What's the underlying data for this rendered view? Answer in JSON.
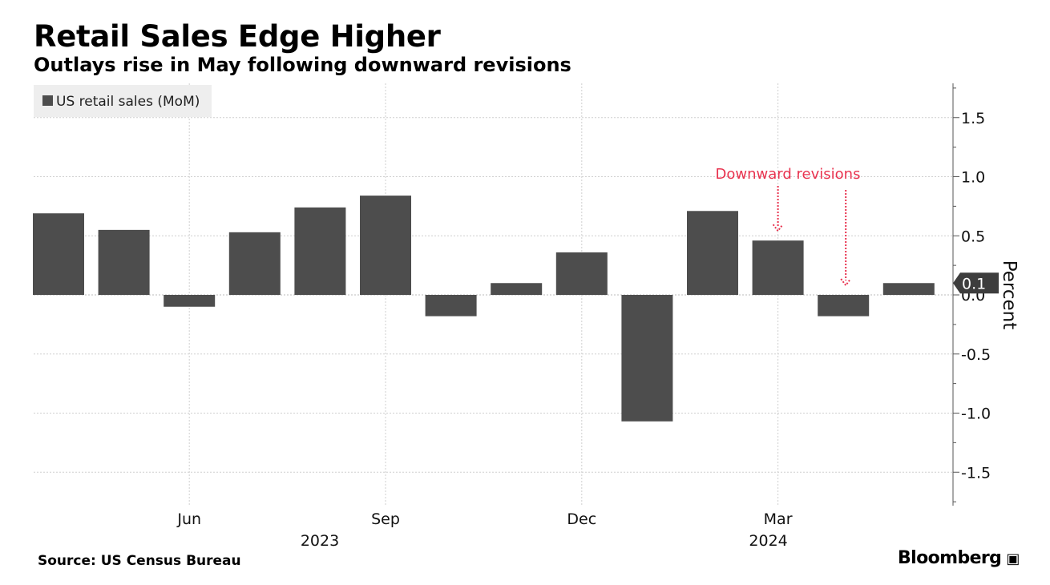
{
  "title": "Retail Sales Edge Higher",
  "subtitle": "Outlays rise in May following downward revisions",
  "source": "Source: US Census Bureau",
  "brand": "Bloomberg",
  "brand_icon": "bloomberg-terminal-icon",
  "chart_data": {
    "type": "bar",
    "legend_label": "US retail sales (MoM)",
    "legend_position": "top-left",
    "ylabel": "Percent",
    "ylim": [
      -1.8,
      1.8
    ],
    "yticks": [
      1.5,
      1.0,
      0.5,
      0.0,
      -0.5,
      -1.0,
      -1.5
    ],
    "ytick_labels": [
      "1.5",
      "1.0",
      "0.5",
      "0.0",
      "-0.5",
      "-1.0",
      "-1.5"
    ],
    "y_axis_side": "right",
    "grid": true,
    "categories": [
      "2023-04",
      "2023-05",
      "2023-06",
      "2023-07",
      "2023-08",
      "2023-09",
      "2023-10",
      "2023-11",
      "2023-12",
      "2024-01",
      "2024-02",
      "2024-03",
      "2024-04",
      "2024-05"
    ],
    "values": [
      0.69,
      0.55,
      -0.1,
      0.53,
      0.74,
      0.84,
      -0.18,
      0.1,
      0.36,
      -1.07,
      0.71,
      0.46,
      -0.18,
      0.1
    ],
    "x_tick_labels": [
      {
        "category": "2023-06",
        "label": "Jun"
      },
      {
        "category": "2023-09",
        "label": "Sep"
      },
      {
        "category": "2023-12",
        "label": "Dec"
      },
      {
        "category": "2024-03",
        "label": "Mar"
      }
    ],
    "year_labels": [
      {
        "category": "2023-07",
        "label": "2023"
      },
      {
        "category": "2024-03",
        "label": "2024"
      }
    ],
    "last_value_label": "0.1",
    "annotation": {
      "text": "Downward revisions",
      "targets": [
        "2024-03",
        "2024-04"
      ],
      "color": "#e8334f"
    },
    "bar_color": "#4d4d4d",
    "grid_color": "#cfcfcf"
  }
}
